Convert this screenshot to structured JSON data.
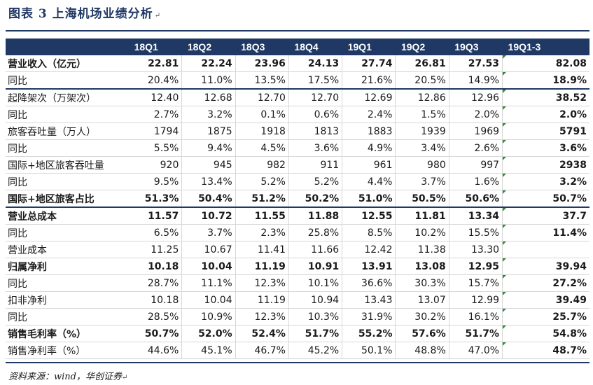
{
  "figure": {
    "title": "图表  3    上海机场业绩分析",
    "source": "资料来源：wind，华创证券"
  },
  "table": {
    "headers": [
      "",
      "18Q1",
      "18Q2",
      "18Q3",
      "18Q4",
      "19Q1",
      "19Q2",
      "19Q3",
      "19Q1-3"
    ],
    "rows": [
      {
        "label": "营业收入（亿元）",
        "values": [
          "22.81",
          "22.24",
          "23.96",
          "24.13",
          "27.74",
          "26.81",
          "27.53"
        ],
        "total": "82.08",
        "bold": true,
        "sep": false
      },
      {
        "label": "同比",
        "values": [
          "20.4%",
          "11.0%",
          "13.5%",
          "17.5%",
          "21.6%",
          "20.5%",
          "14.9%"
        ],
        "total": "18.9%",
        "bold": false,
        "sep": false
      },
      {
        "label": "起降架次（万架次）",
        "values": [
          "12.40",
          "12.68",
          "12.70",
          "12.70",
          "12.69",
          "12.86",
          "12.96"
        ],
        "total": "38.52",
        "bold": false,
        "sep": true
      },
      {
        "label": "同比",
        "values": [
          "2.7%",
          "3.2%",
          "0.1%",
          "0.6%",
          "2.4%",
          "1.5%",
          "2.0%"
        ],
        "total": "2.0%",
        "bold": false,
        "sep": false
      },
      {
        "label": "旅客吞吐量（万人）",
        "values": [
          "1794",
          "1875",
          "1918",
          "1813",
          "1883",
          "1939",
          "1969"
        ],
        "total": "5791",
        "bold": false,
        "sep": false
      },
      {
        "label": "同比",
        "values": [
          "5.5%",
          "9.4%",
          "4.5%",
          "3.6%",
          "4.9%",
          "3.4%",
          "2.6%"
        ],
        "total": "3.6%",
        "bold": false,
        "sep": false
      },
      {
        "label": "国际+地区旅客吞吐量",
        "values": [
          "920",
          "945",
          "982",
          "911",
          "961",
          "980",
          "997"
        ],
        "total": "2938",
        "bold": false,
        "sep": false
      },
      {
        "label": "同比",
        "values": [
          "9.5%",
          "13.4%",
          "5.2%",
          "5.2%",
          "4.4%",
          "3.7%",
          "1.6%"
        ],
        "total": "3.2%",
        "bold": false,
        "sep": false
      },
      {
        "label": "国际+地区旅客占比",
        "values": [
          "51.3%",
          "50.4%",
          "51.2%",
          "50.2%",
          "51.0%",
          "50.5%",
          "50.6%"
        ],
        "total": "50.7%",
        "bold": true,
        "sep": false
      },
      {
        "label": "营业总成本",
        "values": [
          "11.57",
          "10.72",
          "11.55",
          "11.88",
          "12.55",
          "11.81",
          "13.34"
        ],
        "total": "37.7",
        "bold": true,
        "sep": true
      },
      {
        "label": "同比",
        "values": [
          "6.5%",
          "3.7%",
          "2.3%",
          "25.8%",
          "8.5%",
          "10.2%",
          "15.5%"
        ],
        "total": "11.4%",
        "bold": false,
        "sep": false
      },
      {
        "label": "营业成本",
        "values": [
          "11.25",
          "10.67",
          "11.41",
          "11.66",
          "12.42",
          "11.38",
          "13.30"
        ],
        "total": "",
        "bold": false,
        "sep": false
      },
      {
        "label": "归属净利",
        "values": [
          "10.18",
          "10.04",
          "11.19",
          "10.91",
          "13.91",
          "13.08",
          "12.95"
        ],
        "total": "39.94",
        "bold": true,
        "sep": false
      },
      {
        "label": "同比",
        "values": [
          "28.7%",
          "11.1%",
          "12.3%",
          "10.1%",
          "36.6%",
          "30.3%",
          "15.7%"
        ],
        "total": "27.2%",
        "bold": false,
        "sep": false
      },
      {
        "label": "扣非净利",
        "values": [
          "10.18",
          "10.04",
          "11.19",
          "10.94",
          "13.43",
          "13.07",
          "12.99"
        ],
        "total": "39.49",
        "bold": false,
        "sep": false
      },
      {
        "label": "同比",
        "values": [
          "28.5%",
          "10.9%",
          "12.3%",
          "10.3%",
          "31.9%",
          "30.2%",
          "16.1%"
        ],
        "total": "25.7%",
        "bold": false,
        "sep": false
      },
      {
        "label": "销售毛利率（%）",
        "values": [
          "50.7%",
          "52.0%",
          "52.4%",
          "51.7%",
          "55.2%",
          "57.6%",
          "51.7%"
        ],
        "total": "54.8%",
        "bold": true,
        "sep": false
      },
      {
        "label": "销售净利率（%）",
        "values": [
          "44.6%",
          "45.1%",
          "46.7%",
          "45.2%",
          "50.1%",
          "48.8%",
          "47.0%"
        ],
        "total": "48.7%",
        "bold": false,
        "sep": false
      }
    ]
  }
}
